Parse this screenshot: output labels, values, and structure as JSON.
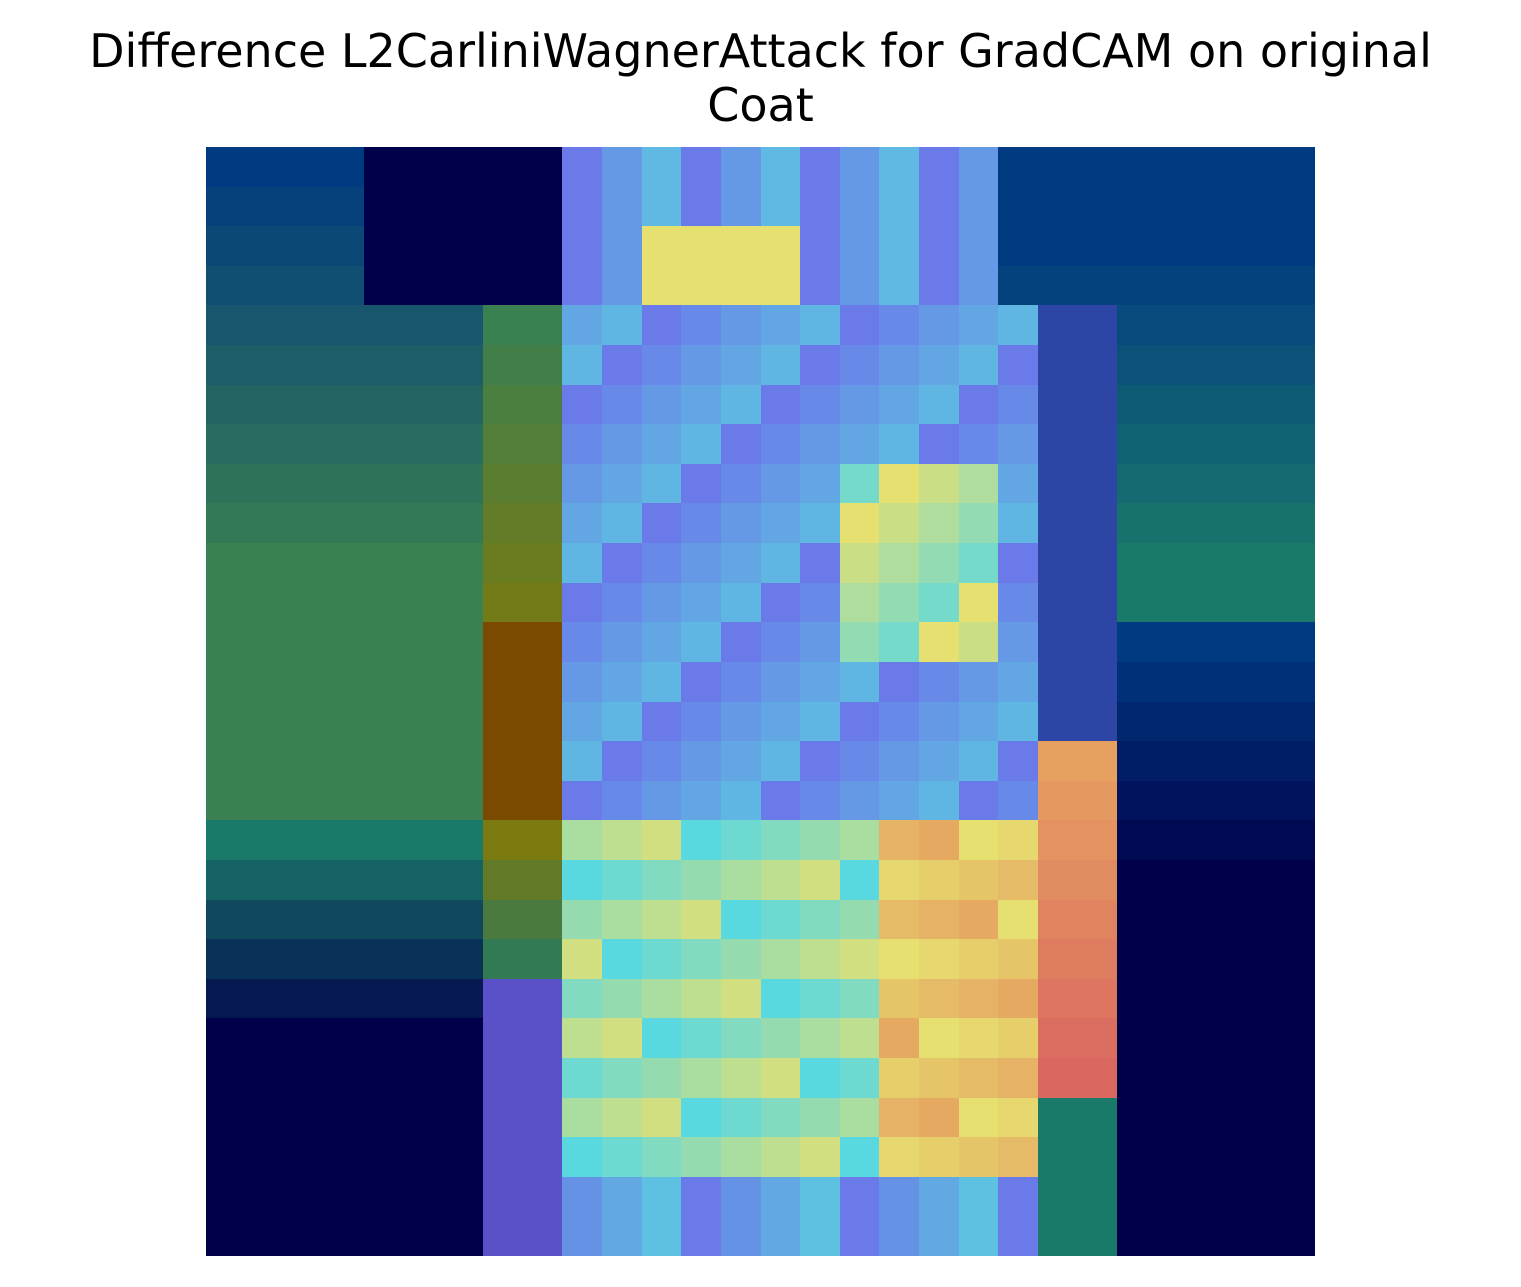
{
  "title": {
    "line1": "Difference L2CarliniWagnerAttack for GradCAM on original",
    "line2": "Coat"
  },
  "image": {
    "description_name": "gradcam-difference-overlay",
    "grid_size": 28
  }
}
